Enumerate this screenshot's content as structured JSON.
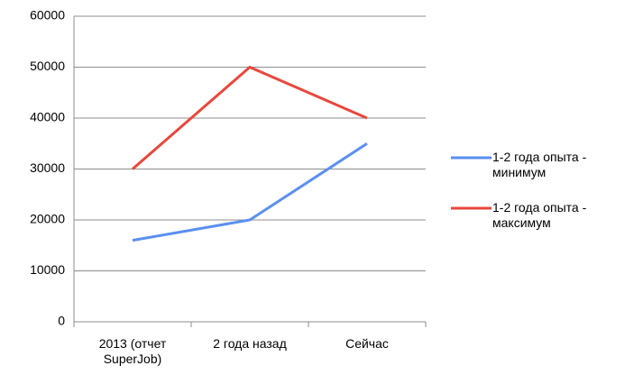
{
  "chart_data": {
    "type": "line",
    "categories": [
      "2013 (отчет SuperJob)",
      "2 года назад",
      "Сейчас"
    ],
    "series": [
      {
        "name": "1-2 года опыта - минимум",
        "color": "#5b8ff0",
        "values": [
          16000,
          20000,
          35000
        ]
      },
      {
        "name": "1-2 года опыта - максимум",
        "color": "#e8473c",
        "values": [
          30000,
          50000,
          40000
        ]
      }
    ],
    "ylim": [
      0,
      60000
    ],
    "yticks": [
      0,
      10000,
      20000,
      30000,
      40000,
      50000,
      60000
    ],
    "grid": true,
    "legend": "right"
  }
}
